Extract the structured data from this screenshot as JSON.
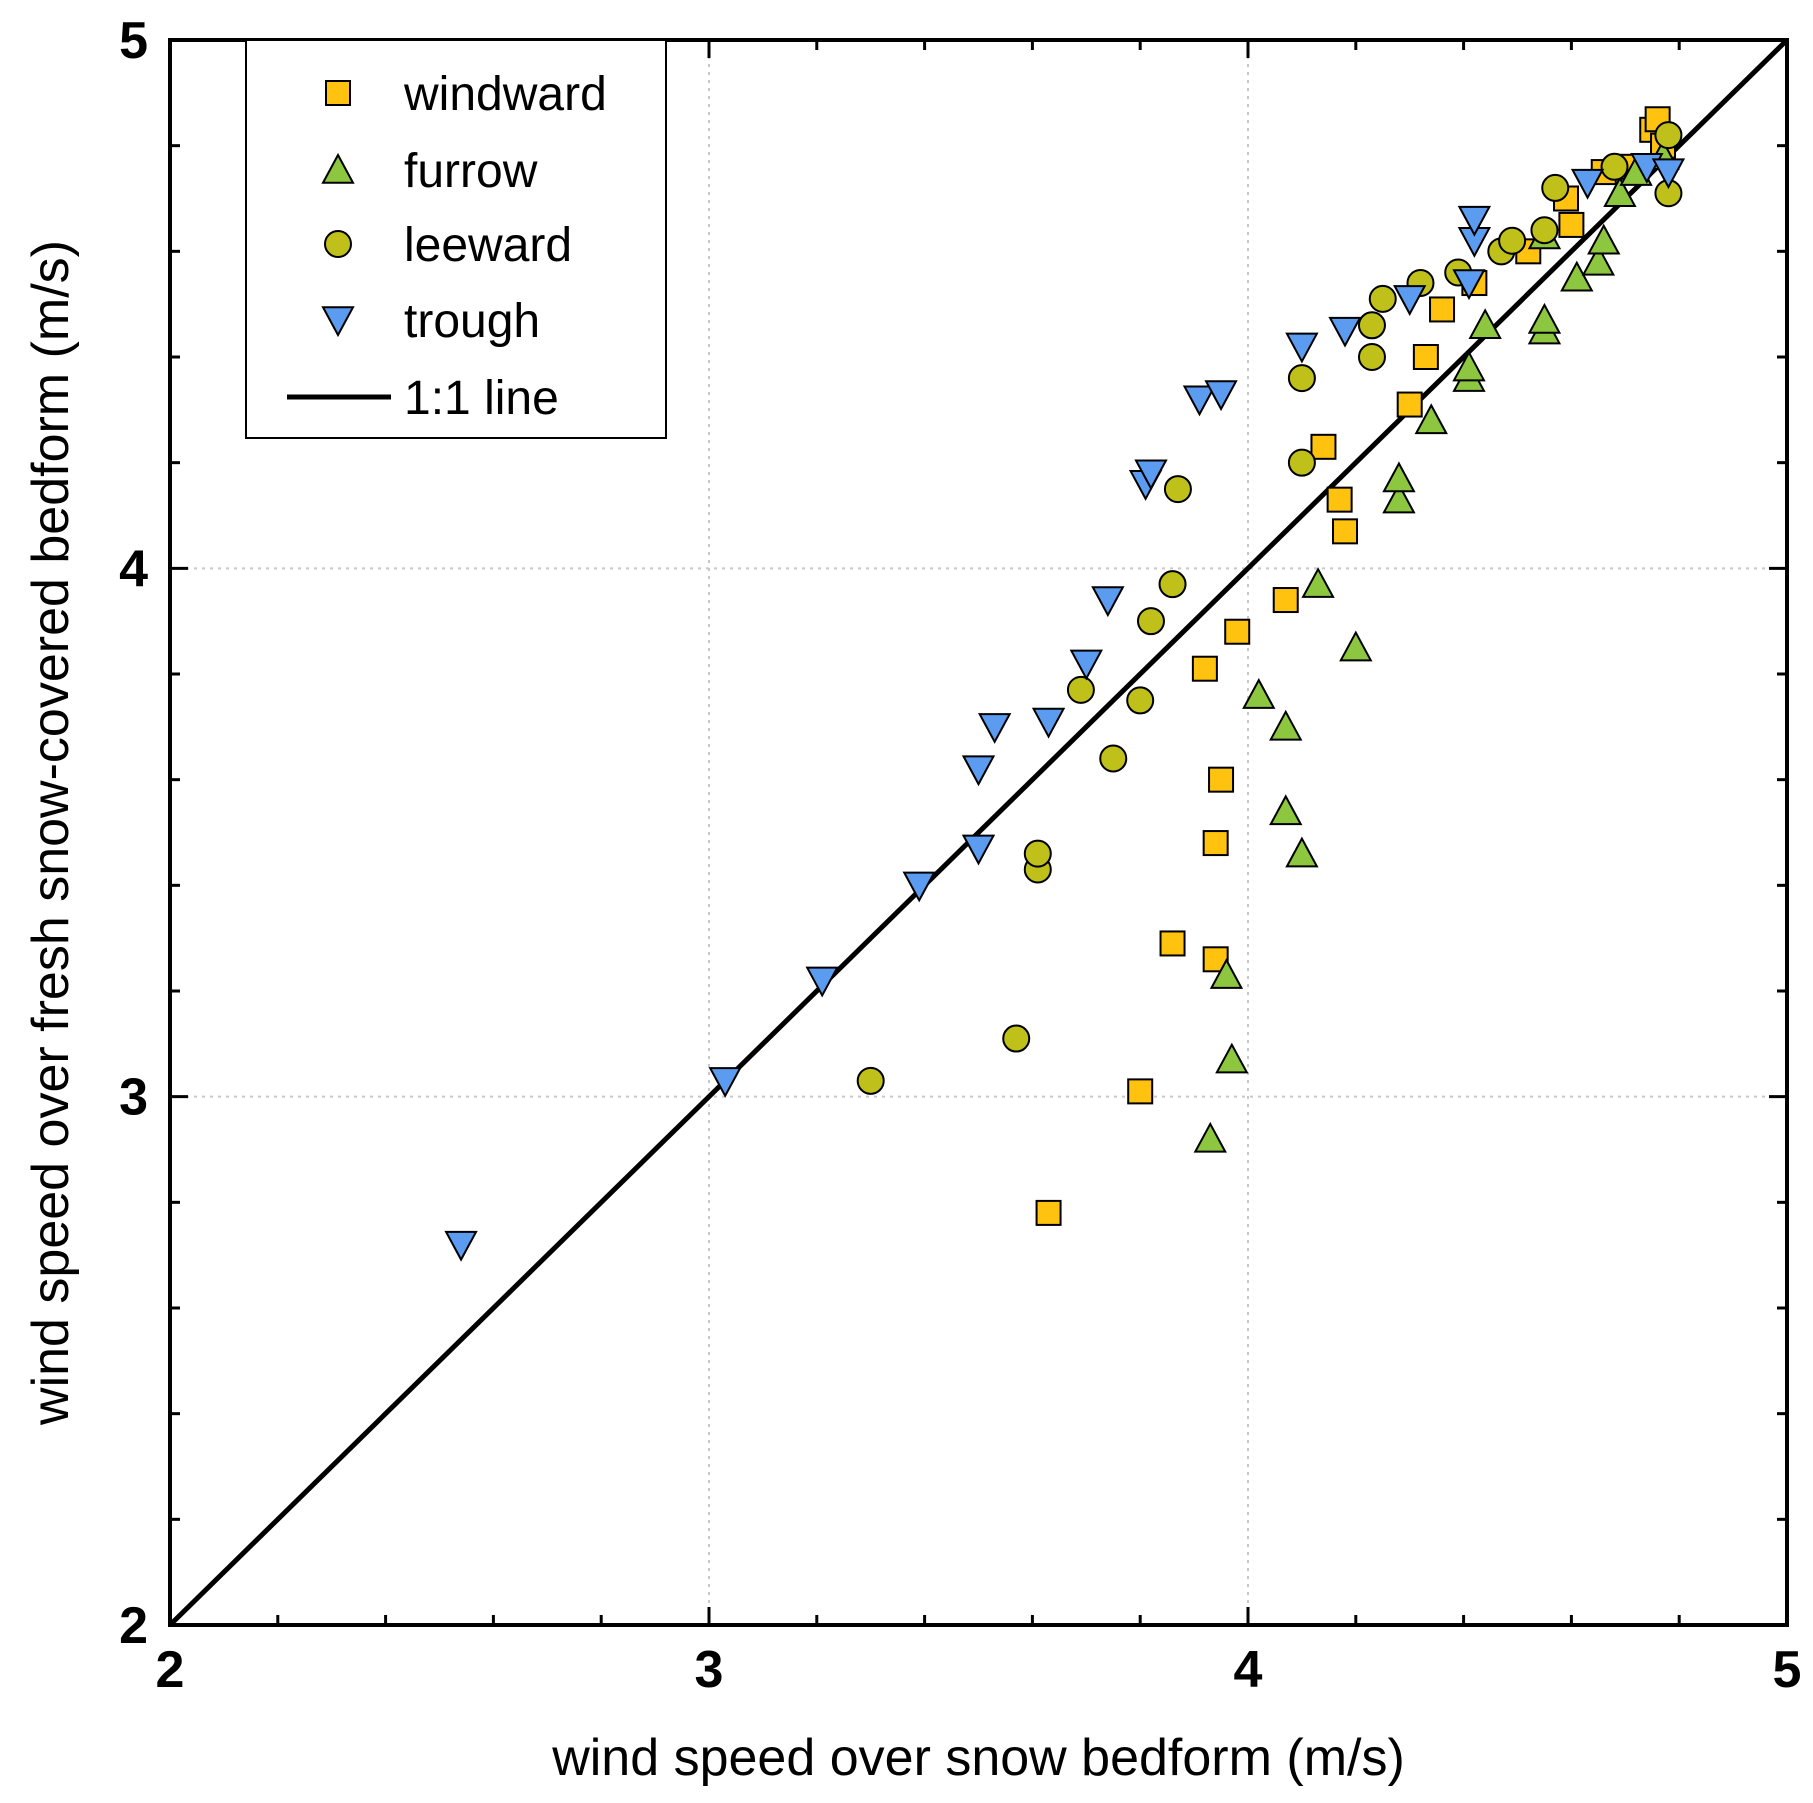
{
  "chart_data": {
    "type": "scatter",
    "title": "",
    "xlabel": "wind speed over snow bedform (m/s)",
    "ylabel": "wind speed over fresh snow-covered bedform (m/s)",
    "xlim": [
      2,
      5
    ],
    "ylim": [
      2,
      5
    ],
    "xticks": [
      "2",
      "3",
      "4",
      "5"
    ],
    "yticks": [
      "2",
      "3",
      "4",
      "5"
    ],
    "grid": true,
    "legend_position": "top-left",
    "reference_line": {
      "name": "1:1 line",
      "points": [
        [
          2,
          2
        ],
        [
          5,
          5
        ]
      ]
    },
    "series": [
      {
        "name": "windward",
        "marker": "square",
        "color": "#FFC20E",
        "points": [
          [
            3.63,
            2.78
          ],
          [
            3.8,
            3.01
          ],
          [
            3.86,
            3.29
          ],
          [
            3.94,
            3.26
          ],
          [
            3.94,
            3.48
          ],
          [
            3.95,
            3.6
          ],
          [
            3.92,
            3.81
          ],
          [
            3.98,
            3.88
          ],
          [
            4.07,
            3.94
          ],
          [
            4.18,
            4.07
          ],
          [
            4.17,
            4.13
          ],
          [
            4.14,
            4.23
          ],
          [
            4.3,
            4.31
          ],
          [
            4.33,
            4.4
          ],
          [
            4.36,
            4.49
          ],
          [
            4.42,
            4.54
          ],
          [
            4.52,
            4.6
          ],
          [
            4.6,
            4.65
          ],
          [
            4.59,
            4.7
          ],
          [
            4.66,
            4.75
          ],
          [
            4.71,
            4.76
          ],
          [
            4.75,
            4.83
          ],
          [
            4.76,
            4.85
          ],
          [
            4.77,
            4.8
          ]
        ]
      },
      {
        "name": "furrow",
        "marker": "triangle-up",
        "color": "#8DC63F",
        "points": [
          [
            3.93,
            2.92
          ],
          [
            3.97,
            3.07
          ],
          [
            3.96,
            3.23
          ],
          [
            4.1,
            3.46
          ],
          [
            4.07,
            3.54
          ],
          [
            4.07,
            3.7
          ],
          [
            4.02,
            3.76
          ],
          [
            4.2,
            3.85
          ],
          [
            4.13,
            3.97
          ],
          [
            4.28,
            4.13
          ],
          [
            4.28,
            4.17
          ],
          [
            4.34,
            4.28
          ],
          [
            4.41,
            4.36
          ],
          [
            4.41,
            4.38
          ],
          [
            4.44,
            4.46
          ],
          [
            4.55,
            4.45
          ],
          [
            4.55,
            4.47
          ],
          [
            4.61,
            4.55
          ],
          [
            4.65,
            4.58
          ],
          [
            4.66,
            4.62
          ],
          [
            4.55,
            4.63
          ],
          [
            4.69,
            4.71
          ],
          [
            4.72,
            4.75
          ],
          [
            4.77,
            4.78
          ]
        ]
      },
      {
        "name": "leeward",
        "marker": "circle",
        "color": "#BFC01A",
        "points": [
          [
            3.3,
            3.03
          ],
          [
            3.57,
            3.11
          ],
          [
            3.61,
            3.43
          ],
          [
            3.61,
            3.46
          ],
          [
            3.75,
            3.64
          ],
          [
            3.69,
            3.77
          ],
          [
            3.8,
            3.75
          ],
          [
            3.82,
            3.9
          ],
          [
            3.86,
            3.97
          ],
          [
            3.87,
            4.15
          ],
          [
            4.1,
            4.2
          ],
          [
            4.1,
            4.36
          ],
          [
            4.23,
            4.4
          ],
          [
            4.23,
            4.46
          ],
          [
            4.25,
            4.51
          ],
          [
            4.32,
            4.54
          ],
          [
            4.39,
            4.56
          ],
          [
            4.47,
            4.6
          ],
          [
            4.49,
            4.62
          ],
          [
            4.55,
            4.64
          ],
          [
            4.57,
            4.72
          ],
          [
            4.68,
            4.76
          ],
          [
            4.78,
            4.71
          ],
          [
            4.78,
            4.82
          ]
        ]
      },
      {
        "name": "trough",
        "marker": "triangle-down",
        "color": "#5B9BF0",
        "points": [
          [
            2.54,
            2.72
          ],
          [
            3.03,
            3.03
          ],
          [
            3.21,
            3.22
          ],
          [
            3.39,
            3.4
          ],
          [
            3.5,
            3.47
          ],
          [
            3.5,
            3.62
          ],
          [
            3.53,
            3.7
          ],
          [
            3.63,
            3.71
          ],
          [
            3.7,
            3.82
          ],
          [
            3.74,
            3.94
          ],
          [
            3.81,
            4.16
          ],
          [
            3.82,
            4.18
          ],
          [
            3.91,
            4.32
          ],
          [
            3.95,
            4.33
          ],
          [
            4.1,
            4.42
          ],
          [
            4.18,
            4.45
          ],
          [
            4.3,
            4.51
          ],
          [
            4.41,
            4.54
          ],
          [
            4.42,
            4.62
          ],
          [
            4.42,
            4.66
          ],
          [
            4.63,
            4.73
          ],
          [
            4.74,
            4.76
          ],
          [
            4.78,
            4.75
          ]
        ]
      }
    ]
  }
}
